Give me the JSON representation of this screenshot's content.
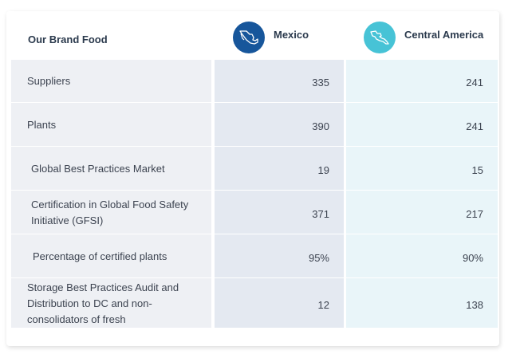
{
  "header": {
    "brand_label": "Our Brand Food",
    "col_mexico": "Mexico",
    "col_central_america": "Central America"
  },
  "colors": {
    "mexico_badge": "#17569b",
    "central_america_badge": "#47c3d6",
    "header_text": "#2b3a4d"
  },
  "icons": {
    "mexico": "mexico-map-icon",
    "central_america": "central-america-map-icon"
  },
  "rows": [
    {
      "label": "Suppliers",
      "mexico": "335",
      "central_america": "241"
    },
    {
      "label": "Plants",
      "mexico": "390",
      "central_america": "241"
    },
    {
      "label": "Global Best Practices Market",
      "mexico": "19",
      "central_america": "15"
    },
    {
      "label": "Certification in Global Food Safety Initiative (GFSI)",
      "mexico": "371",
      "central_america": "217"
    },
    {
      "label": "Percentage of certified plants",
      "mexico": "95%",
      "central_america": "90%"
    },
    {
      "label": "Storage Best Practices Audit and Distribution to DC and non-consolidators of fresh",
      "mexico": "12",
      "central_america": "138"
    }
  ]
}
